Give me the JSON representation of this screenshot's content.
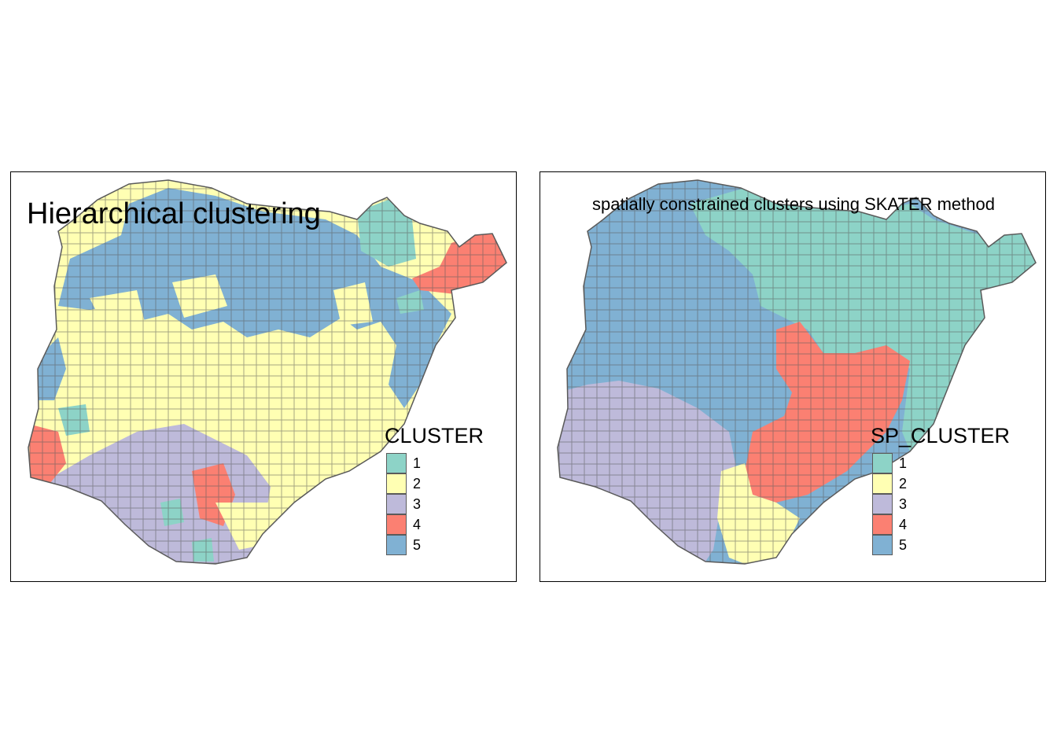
{
  "maps": [
    {
      "id": "left",
      "title": "Hierarchical clustering",
      "legend_title": "CLUSTER"
    },
    {
      "id": "right",
      "title": "spatially constrained clusters using SKATER method",
      "legend_title": "SP_CLUSTER"
    }
  ],
  "legend_items": [
    {
      "label": "1",
      "color": "#8DD3C7"
    },
    {
      "label": "2",
      "color": "#FFFFB3"
    },
    {
      "label": "3",
      "color": "#BEBADA"
    },
    {
      "label": "4",
      "color": "#FB8072"
    },
    {
      "label": "5",
      "color": "#80B1D3"
    }
  ],
  "border_color": "#5a5a5a"
}
